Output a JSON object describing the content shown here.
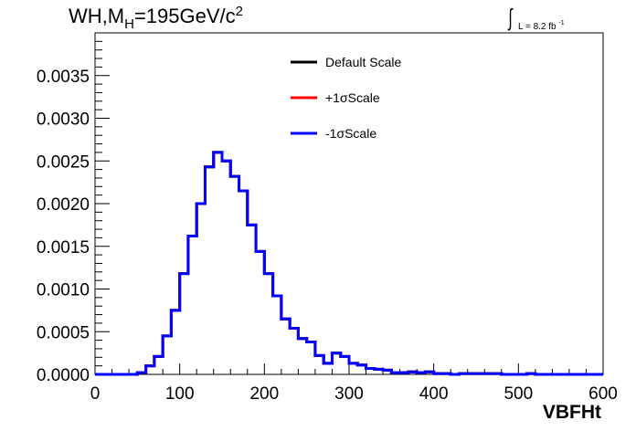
{
  "chart_data": {
    "type": "line",
    "title": "WH,M",
    "title_sub": "H",
    "title_rest": "=195GeV/c",
    "title_sup": "2",
    "lumi_label": "L = 8.2 fb",
    "lumi_sup": "-1",
    "xlabel": "VBFHt",
    "ylabel": "",
    "xlim": [
      0,
      600
    ],
    "ylim": [
      0,
      0.004
    ],
    "x_ticks": [
      0,
      100,
      200,
      300,
      400,
      500,
      600
    ],
    "x_tick_labels": [
      "0",
      "100",
      "200",
      "300",
      "400",
      "500",
      "600"
    ],
    "y_ticks": [
      0,
      0.0005,
      0.001,
      0.0015,
      0.002,
      0.0025,
      0.003,
      0.0035
    ],
    "y_tick_labels": [
      "0.0000",
      "0.0005",
      "0.0010",
      "0.0015",
      "0.0020",
      "0.0025",
      "0.0030",
      "0.0035"
    ],
    "bin_edges": [
      0,
      10,
      20,
      30,
      40,
      50,
      60,
      70,
      80,
      90,
      100,
      110,
      120,
      130,
      140,
      150,
      160,
      170,
      180,
      190,
      200,
      210,
      220,
      230,
      240,
      250,
      260,
      270,
      280,
      290,
      300,
      310,
      320,
      330,
      340,
      350,
      360,
      370,
      380,
      390,
      400,
      410,
      420,
      430,
      440,
      450,
      460,
      470,
      480,
      490,
      500,
      510,
      520,
      530,
      540,
      550,
      560,
      570,
      580,
      590,
      600
    ],
    "legend_position": "top-center",
    "series": [
      {
        "name": "Default Scale",
        "color": "#000000",
        "values": [
          0,
          0,
          0,
          0,
          0,
          2e-05,
          0.0001,
          0.00021,
          0.00045,
          0.00075,
          0.00118,
          0.00162,
          0.002,
          0.00243,
          0.0026,
          0.0025,
          0.00232,
          0.00215,
          0.00175,
          0.00144,
          0.00118,
          0.00092,
          0.00065,
          0.00054,
          0.00042,
          0.00038,
          0.00022,
          0.00013,
          0.00025,
          0.00021,
          0.00013,
          0.00011,
          7e-05,
          6e-05,
          5e-05,
          2e-05,
          2e-05,
          3e-05,
          2e-05,
          3e-05,
          1e-05,
          1e-05,
          0,
          1e-05,
          1e-05,
          1e-05,
          1e-05,
          1e-05,
          0,
          0,
          0,
          1e-05,
          0,
          0,
          0,
          0,
          0,
          0,
          0,
          0
        ]
      },
      {
        "name": "+1σScale",
        "color": "#ff0000",
        "values": [
          0,
          0,
          0,
          0,
          0,
          2e-05,
          0.0001,
          0.00021,
          0.00045,
          0.00075,
          0.00118,
          0.00162,
          0.002,
          0.00243,
          0.0026,
          0.0025,
          0.00232,
          0.00215,
          0.00175,
          0.00144,
          0.00118,
          0.00092,
          0.00065,
          0.00054,
          0.00042,
          0.00038,
          0.00022,
          0.00013,
          0.00025,
          0.00021,
          0.00013,
          0.00011,
          7e-05,
          6e-05,
          5e-05,
          2e-05,
          2e-05,
          3e-05,
          2e-05,
          3e-05,
          1e-05,
          1e-05,
          0,
          1e-05,
          1e-05,
          1e-05,
          1e-05,
          1e-05,
          0,
          0,
          0,
          1e-05,
          0,
          0,
          0,
          0,
          0,
          0,
          0,
          0
        ]
      },
      {
        "name": "-1σScale",
        "color": "#0000ff",
        "values": [
          0,
          0,
          0,
          0,
          0,
          2e-05,
          0.0001,
          0.00021,
          0.00045,
          0.00075,
          0.00118,
          0.00162,
          0.002,
          0.00243,
          0.0026,
          0.0025,
          0.00232,
          0.00215,
          0.00175,
          0.00144,
          0.00118,
          0.00092,
          0.00065,
          0.00054,
          0.00042,
          0.00038,
          0.00022,
          0.00013,
          0.00025,
          0.00021,
          0.00013,
          0.00011,
          7e-05,
          6e-05,
          5e-05,
          2e-05,
          2e-05,
          3e-05,
          2e-05,
          3e-05,
          1e-05,
          1e-05,
          0,
          1e-05,
          1e-05,
          1e-05,
          1e-05,
          1e-05,
          0,
          0,
          0,
          1e-05,
          0,
          0,
          0,
          0,
          0,
          0,
          0,
          0
        ]
      }
    ]
  }
}
